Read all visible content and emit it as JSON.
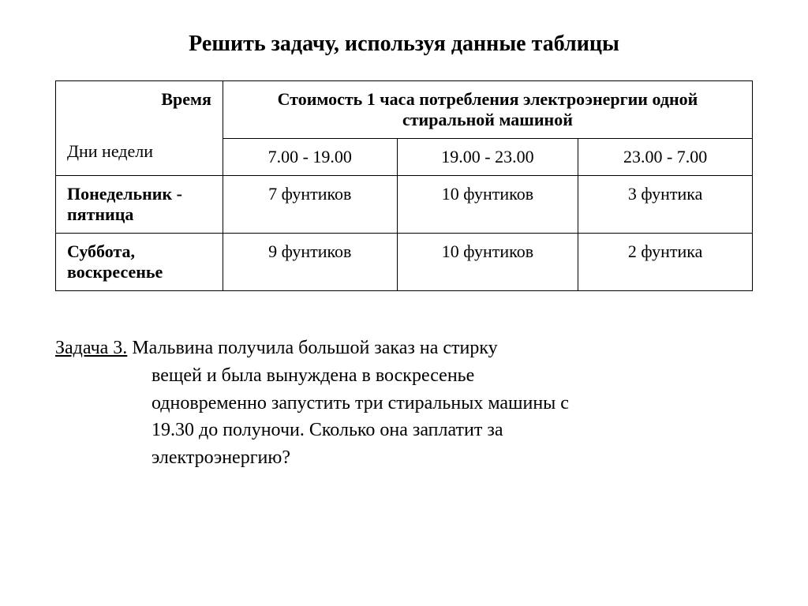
{
  "title": "Решить задачу, используя данные таблицы",
  "table": {
    "header_time": "Время",
    "header_days": "Дни недели",
    "header_cost": "Стоимость 1 часа потребления электроэнергии одной стиральной машиной",
    "time_col1": "7.00 - 19.00",
    "time_col2": "19.00 - 23.00",
    "time_col3": "23.00 - 7.00",
    "row1_label": "Понедельник - пятница",
    "row1_c1": "7 фунтиков",
    "row1_c2": "10 фунтиков",
    "row1_c3": "3 фунтика",
    "row2_label": "Суббота, воскресенье",
    "row2_c1": "9 фунтиков",
    "row2_c2": "10 фунтиков",
    "row2_c3": "2 фунтика",
    "col_widths": [
      "24%",
      "25%",
      "26%",
      "25%"
    ]
  },
  "task": {
    "label": "Задача 3.",
    "line1": " Мальвина получила большой заказ на стирку",
    "line2": "вещей и была вынуждена в воскресенье",
    "line3": "одновременно запустить три стиральных машины с",
    "line4": "19.30 до полуночи. Сколько она заплатит за",
    "line5": "электроэнергию?"
  },
  "style": {
    "background_color": "#ffffff",
    "text_color": "#000000",
    "border_color": "#000000",
    "title_fontsize": 28,
    "table_fontsize": 22,
    "task_fontsize": 24,
    "font_family": "Times New Roman"
  }
}
